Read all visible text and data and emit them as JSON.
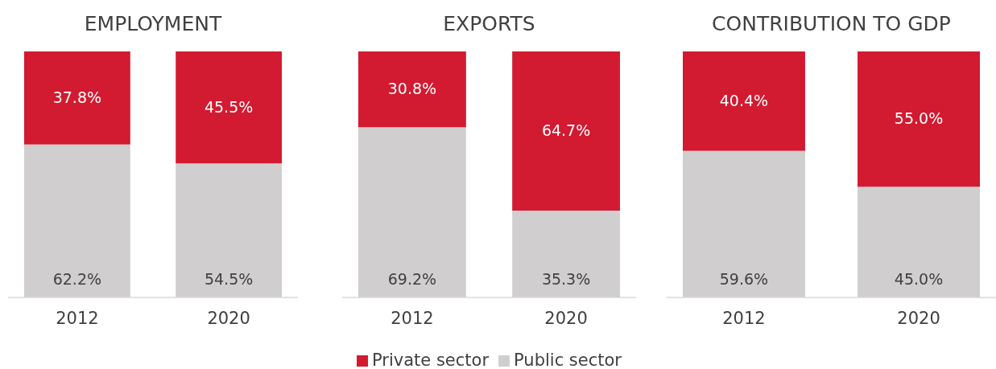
{
  "chart_data": [
    {
      "type": "bar",
      "title": "EMPLOYMENT",
      "categories": [
        "2012",
        "2020"
      ],
      "stacked": true,
      "series": [
        {
          "color": "#d0cece",
          "values": [
            62.2,
            54.5
          ],
          "value_labels": [
            "62.2%",
            "54.5%"
          ]
        },
        {
          "color": "#d21a30",
          "values": [
            37.8,
            45.5
          ],
          "value_labels": [
            "37.8%",
            "45.5%"
          ]
        }
      ]
    },
    {
      "type": "bar",
      "title": "EXPORTS",
      "categories": [
        "2012",
        "2020"
      ],
      "stacked": true,
      "legend": "bottom",
      "series": [
        {
          "name": "Public sector",
          "color": "#d0cece",
          "values": [
            69.2,
            35.3
          ],
          "value_labels": [
            "69.2%",
            "35.3%"
          ]
        },
        {
          "name": "Private sector",
          "color": "#d21a30",
          "values": [
            30.8,
            64.7
          ],
          "value_labels": [
            "30.8%",
            "64.7%"
          ]
        }
      ]
    },
    {
      "type": "bar",
      "title": "CONTRIBUTION TO GDP",
      "categories": [
        "2012",
        "2020"
      ],
      "stacked": true,
      "series": [
        {
          "color": "#d0cece",
          "values": [
            59.6,
            45.0
          ],
          "value_labels": [
            "59.6%",
            "45.0%"
          ]
        },
        {
          "color": "#d21a30",
          "values": [
            40.4,
            55.0
          ],
          "value_labels": [
            "40.4%",
            "55.0%"
          ]
        }
      ]
    }
  ]
}
